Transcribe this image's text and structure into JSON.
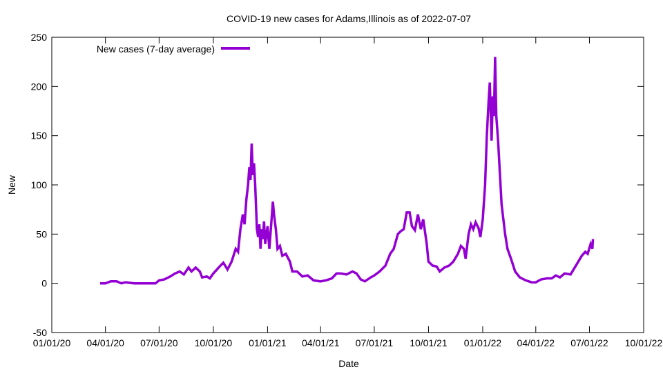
{
  "chart_data": {
    "type": "line",
    "title": "COVID-19 new cases for Adams,Illinois as of 2022-07-07",
    "xlabel": "Date",
    "ylabel": "New",
    "xlim": [
      "2020-01-01",
      "2022-10-01"
    ],
    "ylim": [
      -50,
      250
    ],
    "x_ticks": [
      "2020-01-01",
      "2020-04-01",
      "2020-07-01",
      "2020-10-01",
      "2021-01-01",
      "2021-04-01",
      "2021-07-01",
      "2021-10-01",
      "2022-01-01",
      "2022-04-01",
      "2022-07-01",
      "2022-10-01"
    ],
    "x_tick_labels": [
      "01/01/20",
      "04/01/20",
      "07/01/20",
      "10/01/20",
      "01/01/21",
      "04/01/21",
      "07/01/21",
      "10/01/21",
      "01/01/22",
      "04/01/22",
      "07/01/22",
      "10/01/22"
    ],
    "y_ticks": [
      -50,
      0,
      50,
      100,
      150,
      200,
      250
    ],
    "y_tick_labels": [
      "-50",
      "0",
      "50",
      "100",
      "150",
      "200",
      "250"
    ],
    "grid": false,
    "legend_position": "top-left",
    "series": [
      {
        "name": "New cases (7-day average)",
        "color": "#9400d3",
        "x": [
          "2020-03-23",
          "2020-04-01",
          "2020-04-10",
          "2020-04-20",
          "2020-04-28",
          "2020-05-05",
          "2020-05-20",
          "2020-06-10",
          "2020-06-25",
          "2020-07-01",
          "2020-07-10",
          "2020-07-20",
          "2020-07-28",
          "2020-08-05",
          "2020-08-12",
          "2020-08-20",
          "2020-08-25",
          "2020-09-01",
          "2020-09-08",
          "2020-09-12",
          "2020-09-20",
          "2020-09-25",
          "2020-10-01",
          "2020-10-10",
          "2020-10-18",
          "2020-10-25",
          "2020-11-01",
          "2020-11-08",
          "2020-11-12",
          "2020-11-16",
          "2020-11-20",
          "2020-11-23",
          "2020-11-26",
          "2020-11-29",
          "2020-12-01",
          "2020-12-03",
          "2020-12-05",
          "2020-12-07",
          "2020-12-09",
          "2020-12-11",
          "2020-12-14",
          "2020-12-16",
          "2020-12-18",
          "2020-12-20",
          "2020-12-22",
          "2020-12-24",
          "2020-12-26",
          "2020-12-28",
          "2021-01-01",
          "2021-01-04",
          "2021-01-07",
          "2021-01-10",
          "2021-01-12",
          "2021-01-15",
          "2021-01-18",
          "2021-01-22",
          "2021-01-26",
          "2021-02-01",
          "2021-02-08",
          "2021-02-12",
          "2021-02-20",
          "2021-03-01",
          "2021-03-10",
          "2021-03-20",
          "2021-04-01",
          "2021-04-10",
          "2021-04-20",
          "2021-04-28",
          "2021-05-05",
          "2021-05-15",
          "2021-05-25",
          "2021-06-01",
          "2021-06-08",
          "2021-06-15",
          "2021-06-25",
          "2021-07-01",
          "2021-07-10",
          "2021-07-20",
          "2021-07-28",
          "2021-08-03",
          "2021-08-10",
          "2021-08-15",
          "2021-08-20",
          "2021-08-25",
          "2021-08-30",
          "2021-09-03",
          "2021-09-08",
          "2021-09-13",
          "2021-09-18",
          "2021-09-22",
          "2021-09-28",
          "2021-10-01",
          "2021-10-08",
          "2021-10-15",
          "2021-10-20",
          "2021-10-28",
          "2021-11-05",
          "2021-11-12",
          "2021-11-20",
          "2021-11-25",
          "2021-11-30",
          "2021-12-03",
          "2021-12-08",
          "2021-12-12",
          "2021-12-16",
          "2021-12-20",
          "2021-12-25",
          "2021-12-28",
          "2022-01-01",
          "2022-01-05",
          "2022-01-08",
          "2022-01-11",
          "2022-01-13",
          "2022-01-16",
          "2022-01-18",
          "2022-01-20",
          "2022-01-22",
          "2022-01-24",
          "2022-01-27",
          "2022-02-02",
          "2022-02-08",
          "2022-02-12",
          "2022-02-18",
          "2022-02-25",
          "2022-03-05",
          "2022-03-15",
          "2022-03-25",
          "2022-04-01",
          "2022-04-10",
          "2022-04-20",
          "2022-04-28",
          "2022-05-05",
          "2022-05-12",
          "2022-05-20",
          "2022-05-30",
          "2022-06-05",
          "2022-06-12",
          "2022-06-18",
          "2022-06-24",
          "2022-06-28",
          "2022-07-03",
          "2022-07-06",
          "2022-07-07"
        ],
        "y": [
          0,
          0,
          2,
          2,
          0,
          1,
          0,
          0,
          0,
          3,
          4,
          7,
          10,
          12,
          9,
          16,
          12,
          16,
          12,
          6,
          7,
          5,
          10,
          16,
          21,
          14,
          22,
          35,
          32,
          55,
          70,
          60,
          85,
          100,
          118,
          105,
          142,
          110,
          122,
          100,
          55,
          47,
          60,
          35,
          55,
          45,
          63,
          40,
          58,
          35,
          58,
          83,
          70,
          55,
          35,
          38,
          28,
          30,
          22,
          12,
          12,
          7,
          8,
          3,
          2,
          3,
          5,
          10,
          10,
          9,
          12,
          10,
          4,
          2,
          6,
          8,
          12,
          18,
          30,
          35,
          50,
          53,
          55,
          72,
          72,
          58,
          54,
          70,
          55,
          65,
          40,
          22,
          18,
          17,
          12,
          16,
          18,
          22,
          30,
          38,
          35,
          25,
          50,
          60,
          55,
          62,
          56,
          47,
          65,
          100,
          150,
          185,
          204,
          145,
          190,
          170,
          230,
          170,
          145,
          80,
          50,
          35,
          25,
          12,
          6,
          3,
          1,
          1,
          4,
          5,
          5,
          8,
          6,
          10,
          9,
          15,
          22,
          28,
          32,
          30,
          40,
          35,
          45
        ]
      }
    ]
  }
}
